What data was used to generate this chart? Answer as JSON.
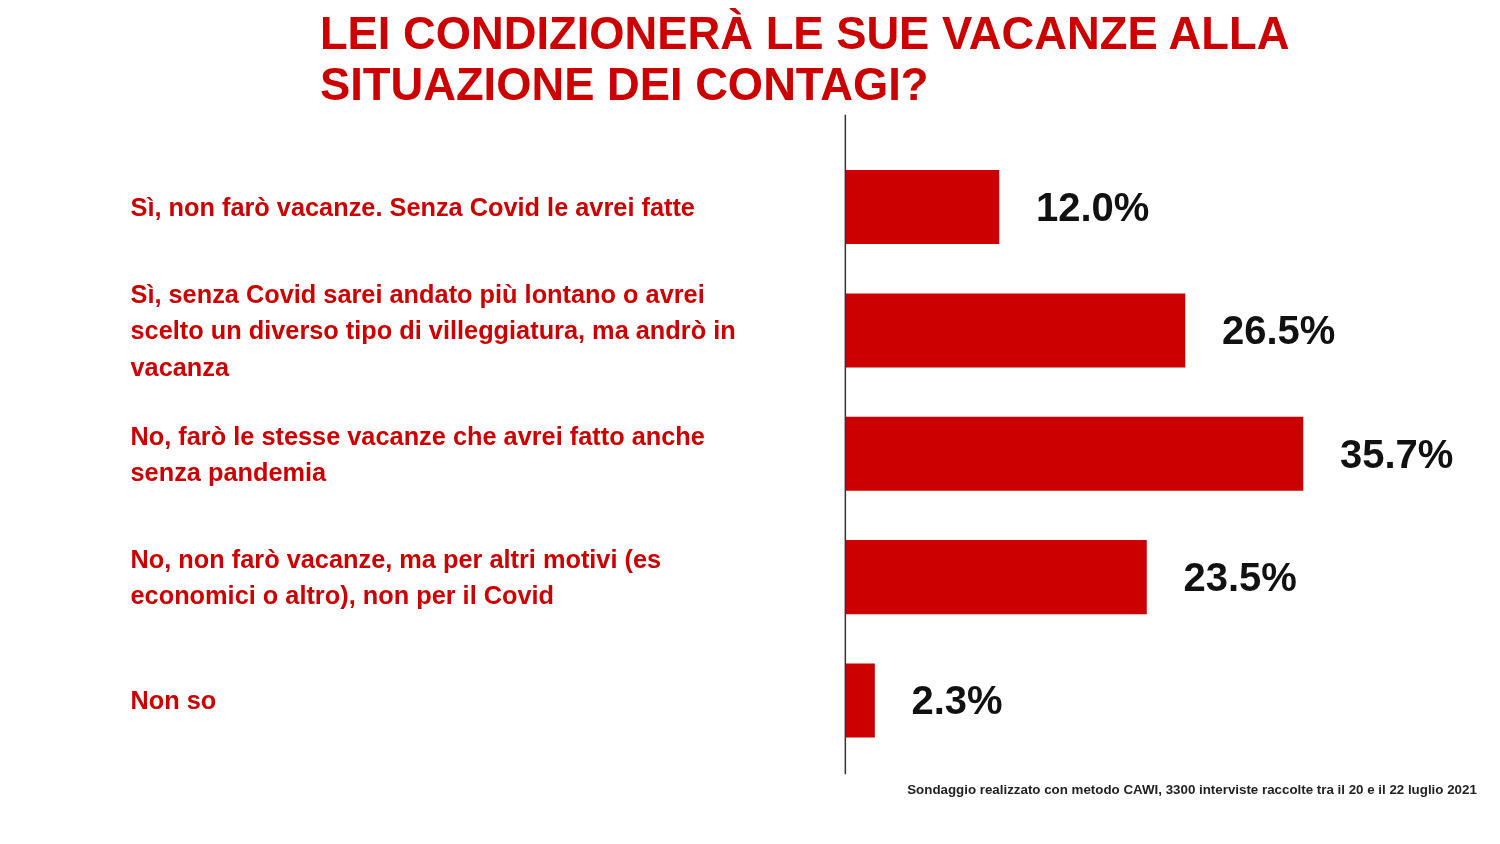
{
  "chart_data": {
    "type": "bar",
    "orientation": "horizontal",
    "title": "LEI CONDIZIONERÀ LE SUE VACANZE ALLA\nSITUAZIONE DEI CONTAGI?",
    "categories": [
      "Sì, non farò vacanze. Senza Covid le avrei fatte",
      "Sì, senza Covid sarei andato più lontano o avrei scelto un diverso tipo di villeggiatura, ma andrò in vacanza",
      "No, farò le stesse vacanze che avrei fatto anche senza pandemia",
      "No, non farò vacanze, ma per altri motivi (es economici o altro), non per il Covid",
      "Non so"
    ],
    "values": [
      12.0,
      26.5,
      35.7,
      23.5,
      2.3
    ],
    "value_labels": [
      "12.0%",
      "26.5%",
      "35.7%",
      "23.5%",
      "2.3%"
    ],
    "color": "#cc0000",
    "annotations": [
      "Sondaggio realizzato con metodo CAWI, 3300 interviste raccolte tra il 20 e il 22  luglio 2021"
    ]
  }
}
